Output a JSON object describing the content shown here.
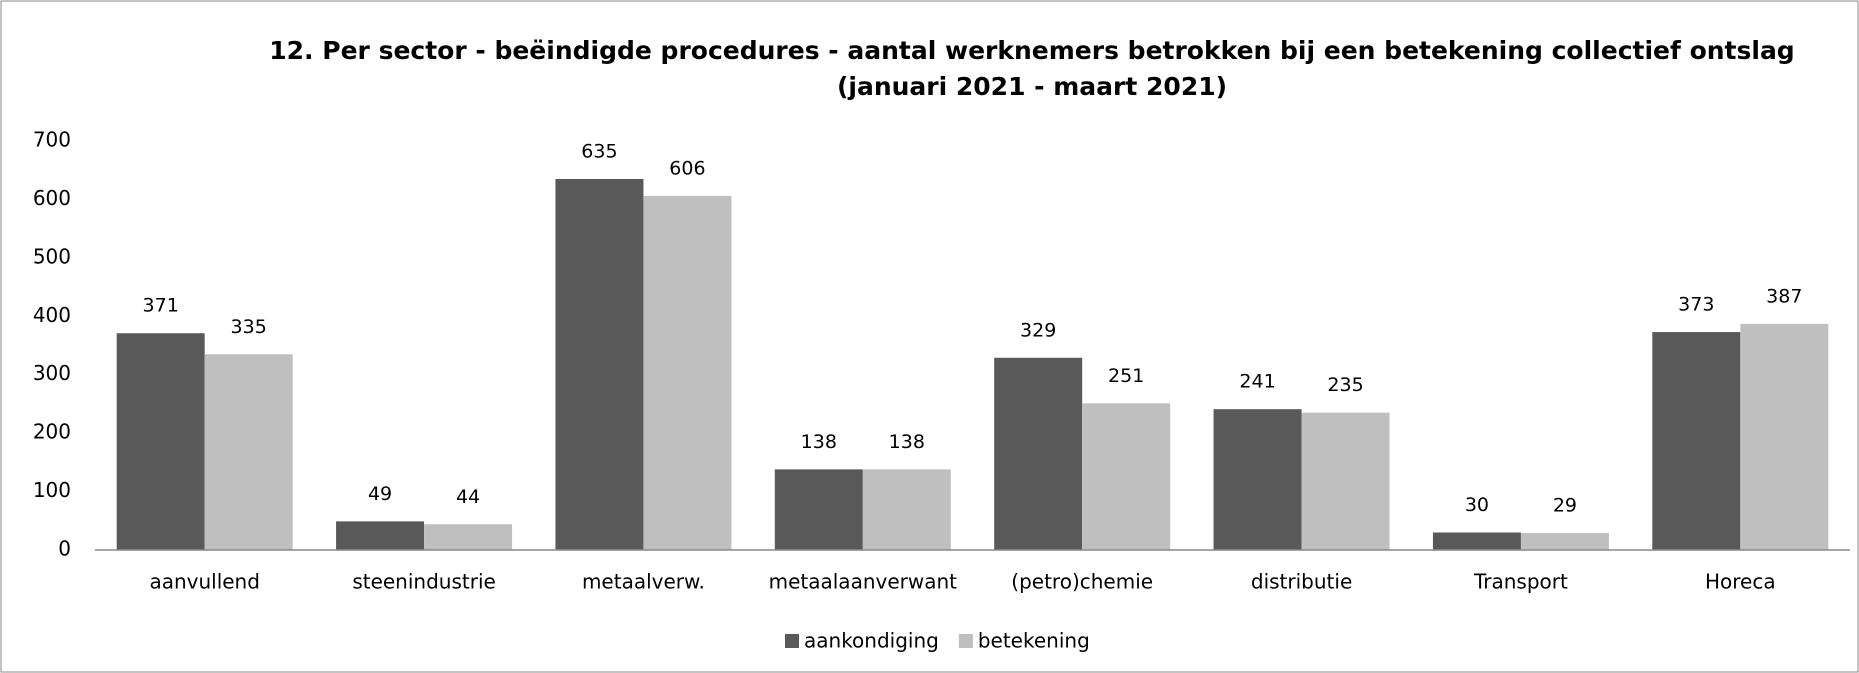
{
  "chart_data": {
    "type": "bar",
    "title": "12. Per sector - beëindigde procedures - aantal werknemers betrokken bij een betekening collectief ontslag",
    "subtitle": "(januari 2021 - maart 2021)",
    "categories": [
      "aanvullend",
      "steenindustrie",
      "metaalverw.",
      "metaalaanverwant",
      "(petro)chemie",
      "distributie",
      "Transport",
      "Horeca"
    ],
    "series": [
      {
        "name": "aankondiging",
        "color": "#595959",
        "values": [
          371,
          49,
          635,
          138,
          329,
          241,
          30,
          373
        ]
      },
      {
        "name": "betekening",
        "color": "#bfbfbf",
        "values": [
          335,
          44,
          606,
          138,
          251,
          235,
          29,
          387
        ]
      }
    ],
    "ylim": [
      0,
      700
    ],
    "yticks": [
      0,
      100,
      200,
      300,
      400,
      500,
      600,
      700
    ],
    "grid": false,
    "legend": "bottom"
  }
}
